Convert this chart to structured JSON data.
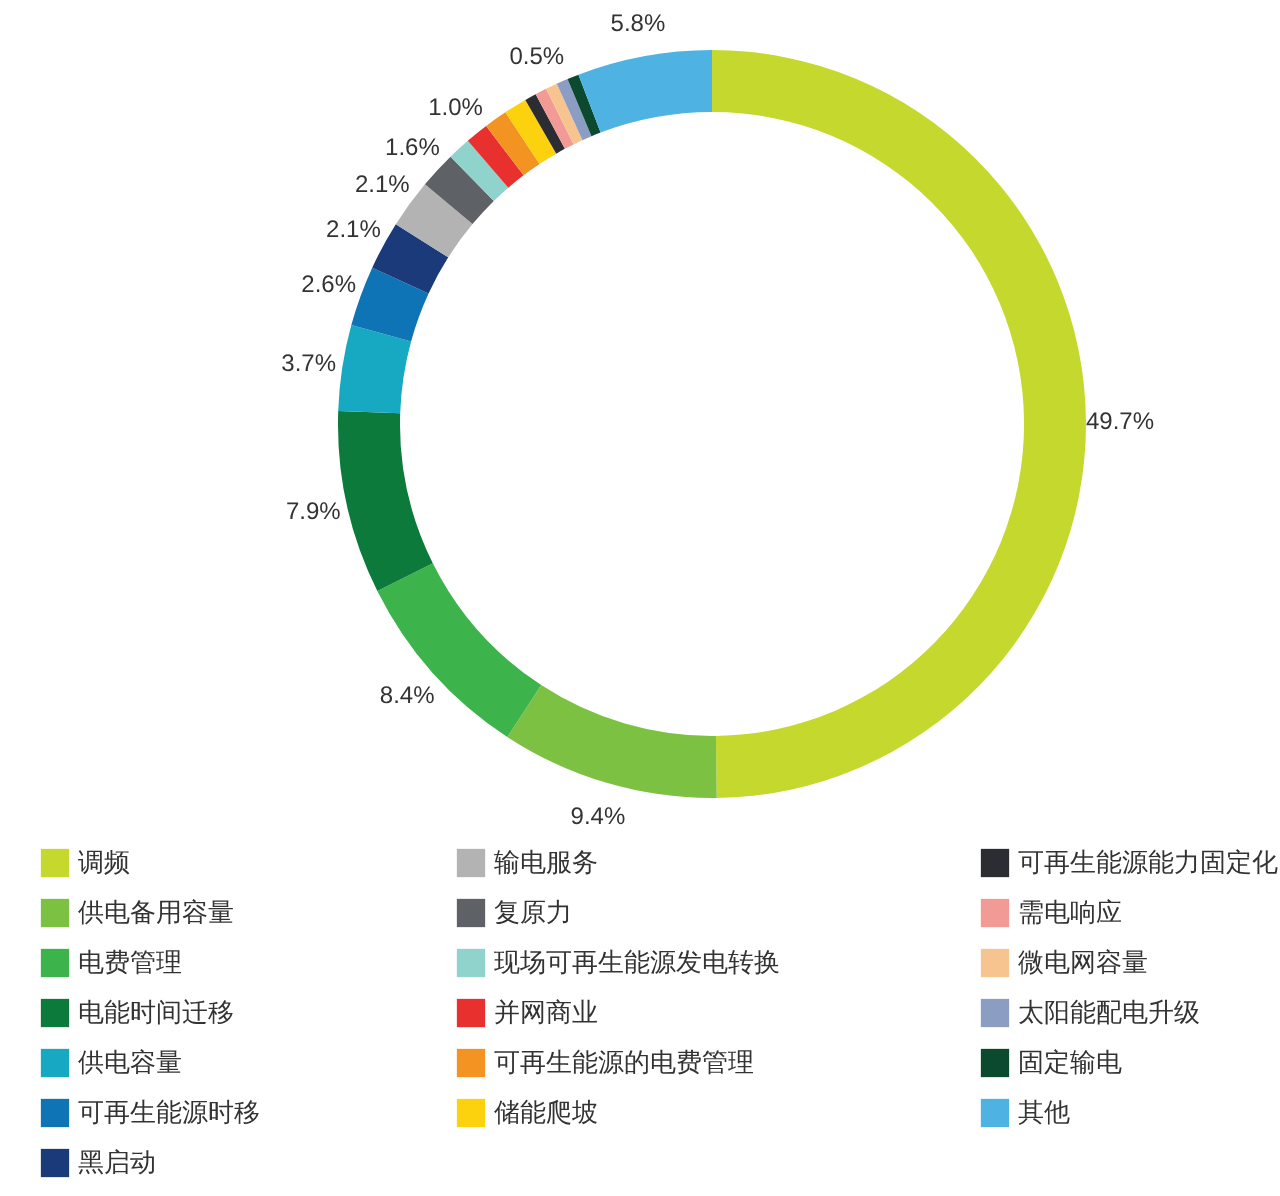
{
  "chart_data": {
    "type": "donut",
    "categories": [
      "调频",
      "供电备用容量",
      "电费管理",
      "电能时间迁移",
      "供电容量",
      "可再生能源时移",
      "黑启动",
      "输电服务",
      "复原力",
      "现场可再生能源发电转换",
      "并网商业",
      "可再生能源的电费管理",
      "储能爬坡",
      "可再生能源能力固定化",
      "需电响应",
      "微电网容量",
      "太阳能配电升级",
      "固定输电",
      "其他"
    ],
    "values": [
      49.7,
      9.4,
      8.4,
      7.9,
      3.7,
      2.6,
      2.1,
      2.1,
      1.6,
      1.0,
      1.0,
      1.0,
      1.0,
      0.5,
      0.5,
      0.5,
      0.5,
      0.5,
      5.8
    ],
    "colors": [
      "#c5d82e",
      "#7dc142",
      "#3cb44b",
      "#0b7a3a",
      "#16a9c1",
      "#0f74b5",
      "#1b3a7a",
      "#b3b3b3",
      "#5e6165",
      "#8fd3cc",
      "#e8312f",
      "#f39322",
      "#fcd20f",
      "#2b2d33",
      "#f29a96",
      "#f7c48f",
      "#8b9dc3",
      "#0b4a2e",
      "#4eb3e3"
    ],
    "value_labels": [
      "49.7%",
      "9.4%",
      "8.4%",
      "7.9%",
      "3.7%",
      "2.6%",
      "2.1%",
      "2.1%",
      "1.6%",
      null,
      "1.0%",
      null,
      null,
      null,
      null,
      "0.5%",
      null,
      null,
      "5.8%"
    ],
    "legend": "bottom"
  }
}
